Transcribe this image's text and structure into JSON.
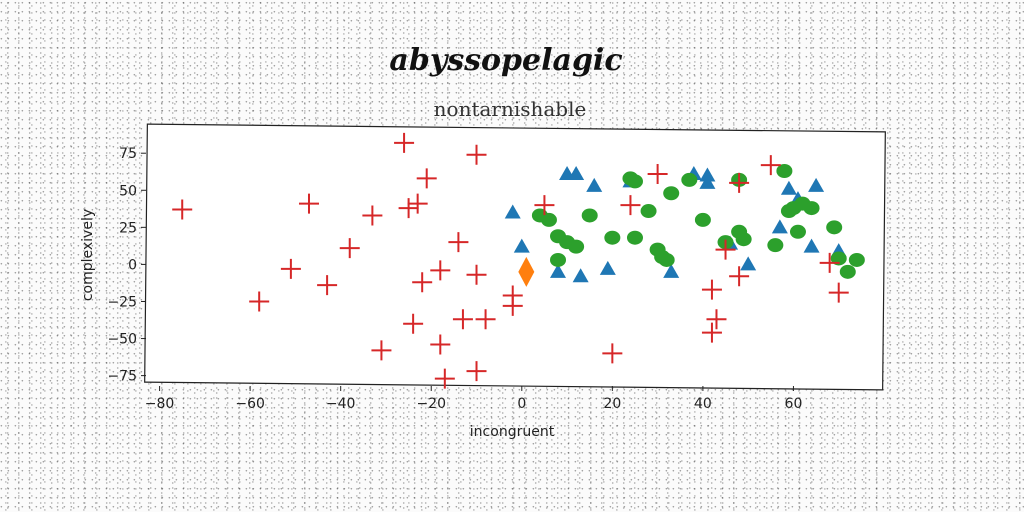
{
  "chart_data": {
    "type": "scatter",
    "title": "abyssopelagic",
    "subtitle": "nontarnishable",
    "xlabel": "incongruent",
    "ylabel": "complexively",
    "xlim": [
      -83,
      80
    ],
    "ylim": [
      -82,
      92
    ],
    "xticks": [
      -80,
      -60,
      -40,
      -20,
      0,
      20,
      40,
      60
    ],
    "yticks": [
      -75,
      -50,
      -25,
      0,
      25,
      50,
      75
    ],
    "grid": false,
    "legend": "none",
    "series": [
      {
        "marker": "triangle",
        "color": "#1f77b4",
        "points": [
          [
            -2,
            35
          ],
          [
            0,
            12
          ],
          [
            8,
            -5
          ],
          [
            10,
            61
          ],
          [
            12,
            61
          ],
          [
            13,
            -8
          ],
          [
            16,
            53
          ],
          [
            19,
            -3
          ],
          [
            24,
            56
          ],
          [
            33,
            -5
          ],
          [
            38,
            61
          ],
          [
            41,
            55
          ],
          [
            41,
            60
          ],
          [
            46,
            14
          ],
          [
            50,
            0
          ],
          [
            57,
            25
          ],
          [
            59,
            51
          ],
          [
            61,
            44
          ],
          [
            64,
            12
          ],
          [
            65,
            53
          ],
          [
            70,
            9
          ]
        ]
      },
      {
        "marker": "diamond",
        "color": "#ff7f0e",
        "points": [
          [
            1,
            -5
          ]
        ]
      },
      {
        "marker": "circle",
        "color": "#2ca02c",
        "points": [
          [
            4,
            33
          ],
          [
            6,
            30
          ],
          [
            8,
            19
          ],
          [
            8,
            3
          ],
          [
            10,
            15
          ],
          [
            12,
            12
          ],
          [
            15,
            33
          ],
          [
            20,
            18
          ],
          [
            24,
            58
          ],
          [
            25,
            56
          ],
          [
            25,
            18
          ],
          [
            28,
            36
          ],
          [
            30,
            10
          ],
          [
            31,
            5
          ],
          [
            32,
            3
          ],
          [
            33,
            48
          ],
          [
            37,
            57
          ],
          [
            40,
            30
          ],
          [
            45,
            15
          ],
          [
            48,
            57
          ],
          [
            48,
            22
          ],
          [
            49,
            17
          ],
          [
            56,
            13
          ],
          [
            58,
            63
          ],
          [
            59,
            36
          ],
          [
            60,
            38
          ],
          [
            61,
            22
          ],
          [
            62,
            41
          ],
          [
            64,
            38
          ],
          [
            69,
            25
          ],
          [
            70,
            4
          ],
          [
            72,
            -5
          ],
          [
            74,
            3
          ]
        ]
      },
      {
        "marker": "plus",
        "color": "#d62728",
        "points": [
          [
            -75,
            37
          ],
          [
            -58,
            -25
          ],
          [
            -51,
            -3
          ],
          [
            -47,
            41
          ],
          [
            -43,
            -14
          ],
          [
            -38,
            11
          ],
          [
            -33,
            33
          ],
          [
            -31,
            -58
          ],
          [
            -26,
            82
          ],
          [
            -25,
            38
          ],
          [
            -24,
            -40
          ],
          [
            -23,
            41
          ],
          [
            -22,
            -12
          ],
          [
            -21,
            58
          ],
          [
            -18,
            -4
          ],
          [
            -18,
            -54
          ],
          [
            -17,
            -77
          ],
          [
            -14,
            15
          ],
          [
            -13,
            -37
          ],
          [
            -10,
            74
          ],
          [
            -10,
            -7
          ],
          [
            -10,
            -72
          ],
          [
            -8,
            -37
          ],
          [
            -2,
            -28
          ],
          [
            -2,
            -21
          ],
          [
            5,
            40
          ],
          [
            20,
            -60
          ],
          [
            24,
            40
          ],
          [
            30,
            61
          ],
          [
            42,
            -17
          ],
          [
            42,
            -46
          ],
          [
            43,
            -37
          ],
          [
            45,
            10
          ],
          [
            48,
            -8
          ],
          [
            48,
            55
          ],
          [
            55,
            67
          ],
          [
            68,
            1
          ],
          [
            70,
            -19
          ]
        ]
      }
    ]
  }
}
